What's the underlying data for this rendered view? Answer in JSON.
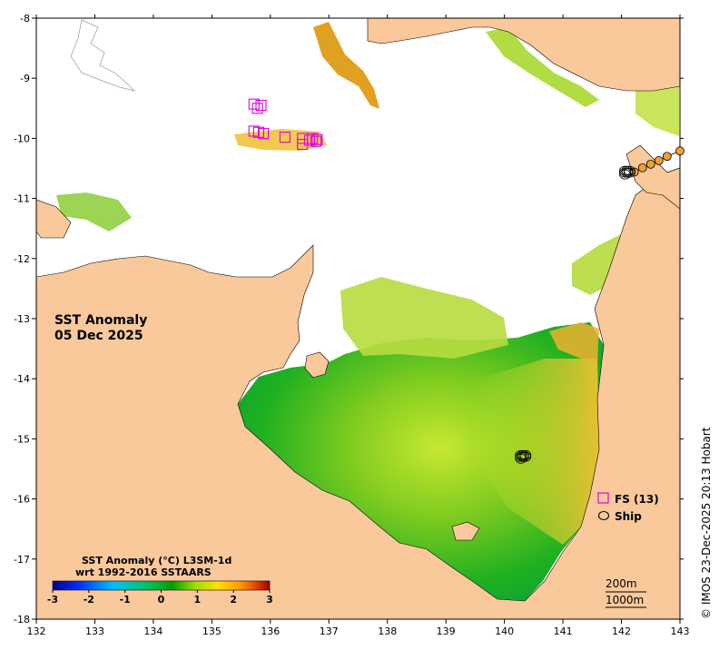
{
  "map": {
    "title_line1": "SST Anomaly",
    "title_line2": "05 Dec 2025",
    "credit": "© IMOS 23-Dec-2025 20:13 Hobart",
    "extent": {
      "lon": [
        132,
        143
      ],
      "lat": [
        -18,
        -8
      ]
    },
    "x_ticks": [
      "132",
      "133",
      "134",
      "135",
      "136",
      "137",
      "138",
      "139",
      "140",
      "141",
      "142",
      "143"
    ],
    "y_ticks": [
      "-8",
      "-9",
      "-10",
      "-11",
      "-12",
      "-13",
      "-14",
      "-15",
      "-16",
      "-17",
      "-18"
    ],
    "colors": {
      "land": "#f9c99b",
      "no_data": "#ffffff",
      "fs_marker": "#e000e0",
      "ship_marker": "#000000",
      "track": "#f0a030"
    }
  },
  "legend": {
    "fs_label": "FS (13)",
    "ship_label": "Ship"
  },
  "colorbar": {
    "title_line1": "SST Anomaly (°C) L3SM-1d",
    "title_line2": "wrt 1992-2016 SSTAARS",
    "ticks": [
      "-3",
      "-2",
      "-1",
      "0",
      "1",
      "2",
      "3"
    ],
    "range": [
      -3,
      3
    ],
    "colors": [
      "#00008b",
      "#0030ff",
      "#00c0ff",
      "#00c060",
      "#00a000",
      "#a0e000",
      "#ffe000",
      "#ffa000",
      "#e04000",
      "#a00000"
    ]
  },
  "scale": {
    "label_200": "200m",
    "label_1000": "1000m"
  },
  "fs_stations": [
    {
      "lon": 135.72,
      "lat": -9.43
    },
    {
      "lon": 135.78,
      "lat": -9.5
    },
    {
      "lon": 135.84,
      "lat": -9.45
    },
    {
      "lon": 135.8,
      "lat": -9.9
    },
    {
      "lon": 135.88,
      "lat": -9.92
    },
    {
      "lon": 136.25,
      "lat": -9.98
    },
    {
      "lon": 136.55,
      "lat": -10.0
    },
    {
      "lon": 136.55,
      "lat": -10.1
    },
    {
      "lon": 136.72,
      "lat": -10.0
    },
    {
      "lon": 136.8,
      "lat": -10.02
    },
    {
      "lon": 136.78,
      "lat": -10.05
    },
    {
      "lon": 136.67,
      "lat": -10.03
    },
    {
      "lon": 135.72,
      "lat": -9.88
    }
  ],
  "ship_points": [
    {
      "lon": 142.1,
      "lat": -10.57
    },
    {
      "lon": 140.32,
      "lat": -15.3
    }
  ],
  "track_points": [
    {
      "lon": 142.22,
      "lat": -10.56
    },
    {
      "lon": 142.36,
      "lat": -10.49
    },
    {
      "lon": 142.5,
      "lat": -10.43
    },
    {
      "lon": 142.64,
      "lat": -10.37
    },
    {
      "lon": 142.78,
      "lat": -10.3
    },
    {
      "lon": 143.0,
      "lat": -10.21
    }
  ]
}
